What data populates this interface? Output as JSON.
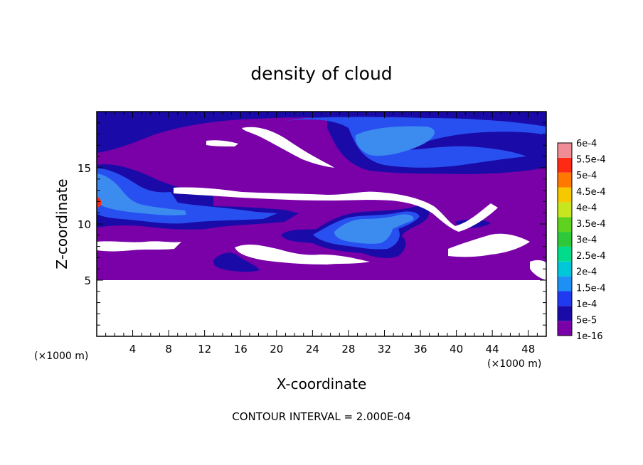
{
  "chart_data": {
    "type": "heatmap",
    "title": "density of cloud",
    "xlabel": "X-coordinate",
    "ylabel": "Z-coordinate",
    "x_unit_left": "(×1000 m)",
    "x_unit_right": "(×1000 m)",
    "footer": "CONTOUR INTERVAL = 2.000E-04",
    "xlim": [
      0,
      50
    ],
    "ylim": [
      0,
      20
    ],
    "x_ticks": [
      4,
      8,
      12,
      16,
      20,
      24,
      28,
      32,
      36,
      40,
      44,
      48
    ],
    "x_tick_labels": [
      "4",
      "8",
      "12",
      "16",
      "20",
      "24",
      "28",
      "32",
      "36",
      "40",
      "44",
      "48"
    ],
    "y_ticks": [
      5,
      10,
      15
    ],
    "y_tick_labels": [
      "5",
      "10",
      "15"
    ],
    "colorbar": {
      "labels": [
        "1e-16",
        "5e-5",
        "1e-4",
        "1.5e-4",
        "2e-4",
        "2.5e-4",
        "3e-4",
        "3.5e-4",
        "4e-4",
        "4.5e-4",
        "5e-4",
        "5.5e-4",
        "6e-4"
      ],
      "colors": [
        "#7A00A8",
        "#1A0BA8",
        "#1F3AF0",
        "#1E90F5",
        "#00C8D8",
        "#00DC8C",
        "#2EC83A",
        "#5ED21E",
        "#C8E61E",
        "#F5C800",
        "#FF7800",
        "#FF2A14",
        "#F08C96"
      ]
    },
    "levels": {
      "base": "#7A00A8",
      "dark": "#1A0BA8",
      "mid": "#2850F0",
      "light": "#3C8CF0"
    }
  }
}
